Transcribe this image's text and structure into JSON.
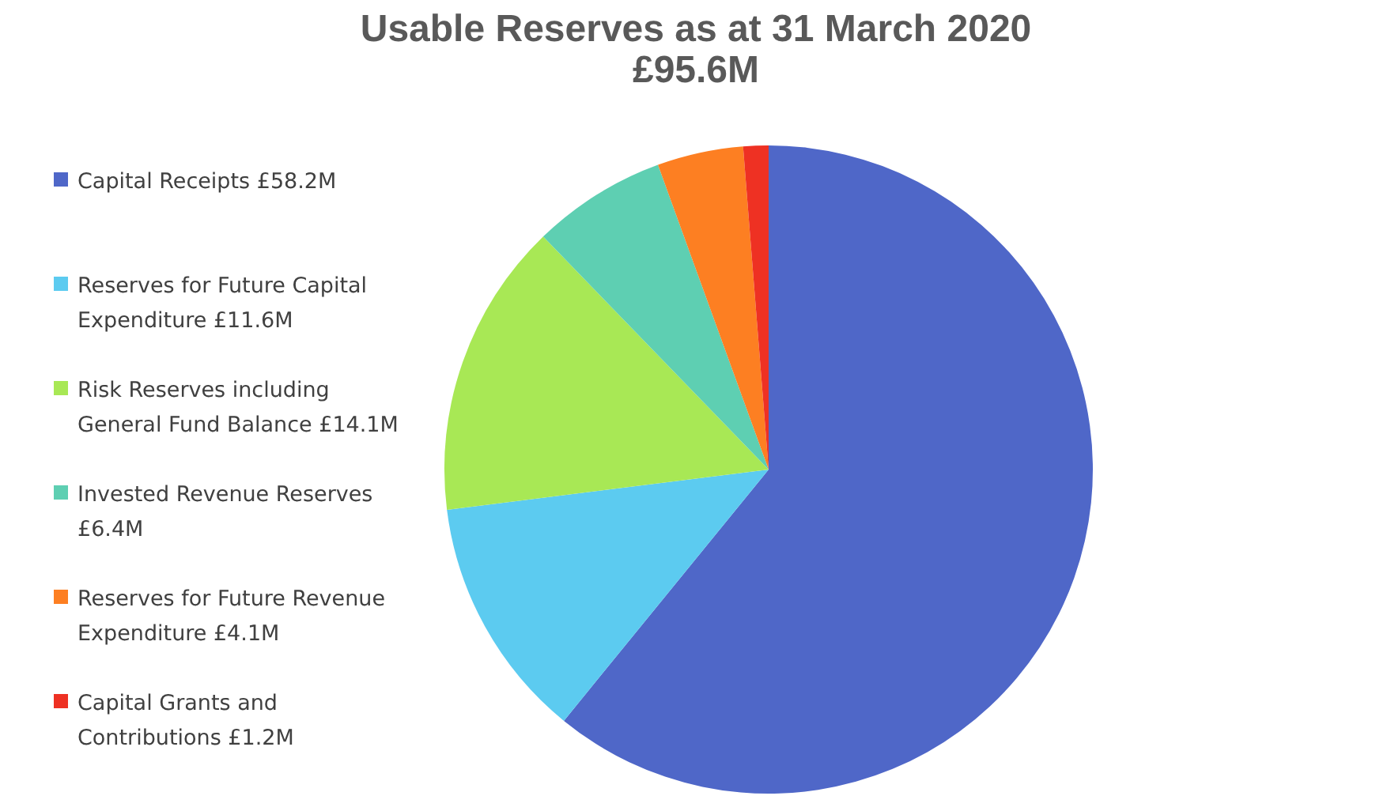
{
  "chart_data": {
    "type": "pie",
    "title": "Usable Reserves as at 31 March 2020",
    "subtitle": "£95.6M",
    "categories": [
      "Capital Receipts",
      "Reserves for Future Capital Expenditure",
      "Risk Reserves including General Fund Balance",
      "Invested Revenue Reserves",
      "Reserves for Future Revenue Expenditure",
      "Capital Grants and Contributions"
    ],
    "values": [
      58.2,
      11.6,
      14.1,
      6.4,
      4.1,
      1.2
    ],
    "value_labels": [
      "£58.2M",
      "£11.6M",
      "£14.1M",
      "£6.4M",
      "£4.1M",
      "£1.2M"
    ],
    "colors": [
      "#4f67c8",
      "#5ccbf0",
      "#a8e855",
      "#5ecfb2",
      "#fd7f22",
      "#ee3123"
    ],
    "legend": "left"
  }
}
